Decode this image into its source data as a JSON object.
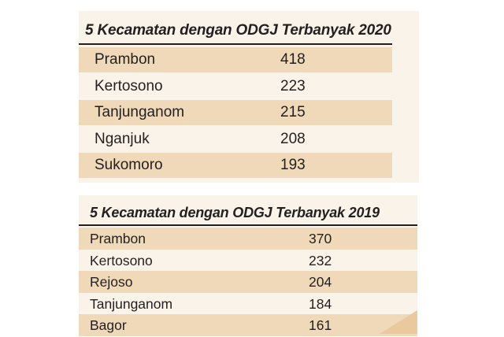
{
  "colors": {
    "panel_background": "#f9f3e9",
    "row_shade": "#f0d9b8",
    "text": "#231f20",
    "corner_accent": "#e9c99d"
  },
  "chart_data": [
    {
      "type": "table",
      "title": "5 Kecamatan dengan ODGJ Terbanyak 2020",
      "categories": [
        "Prambon",
        "Kertosono",
        "Tanjunganom",
        "Nganjuk",
        "Sukomoro"
      ],
      "values": [
        418,
        223,
        215,
        208,
        193
      ],
      "rows": [
        {
          "name": "Prambon",
          "value": "418"
        },
        {
          "name": "Kertosono",
          "value": "223"
        },
        {
          "name": "Tanjunganom",
          "value": "215"
        },
        {
          "name": "Nganjuk",
          "value": "208"
        },
        {
          "name": "Sukomoro",
          "value": "193"
        }
      ]
    },
    {
      "type": "table",
      "title": "5 Kecamatan dengan ODGJ Terbanyak 2019",
      "categories": [
        "Prambon",
        "Kertosono",
        "Rejoso",
        "Tanjunganom",
        "Bagor"
      ],
      "values": [
        370,
        232,
        204,
        184,
        161
      ],
      "rows": [
        {
          "name": "Prambon",
          "value": "370"
        },
        {
          "name": "Kertosono",
          "value": "232"
        },
        {
          "name": "Rejoso",
          "value": "204"
        },
        {
          "name": "Tanjunganom",
          "value": "184"
        },
        {
          "name": "Bagor",
          "value": "161"
        }
      ]
    }
  ]
}
